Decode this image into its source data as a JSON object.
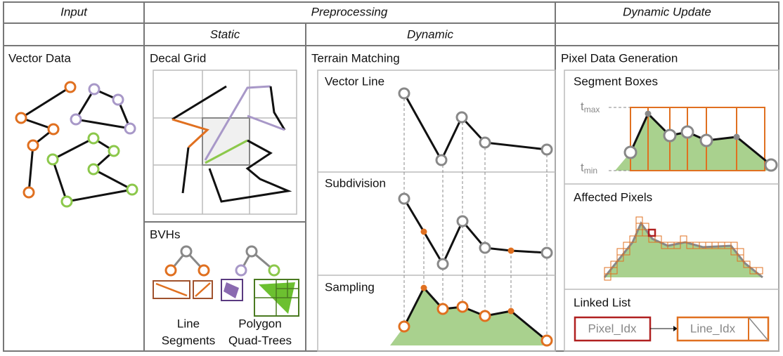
{
  "header": {
    "input": "Input",
    "preprocessing": "Preprocessing",
    "dynamic_update": "Dynamic Update"
  },
  "subheader": {
    "static": "Static",
    "dynamic": "Dynamic"
  },
  "input": {
    "title": "Vector Data"
  },
  "static": {
    "decal_grid": "Decal Grid",
    "bvhs": {
      "title": "BVHs",
      "line_label": [
        "Line",
        "Segments"
      ],
      "polygon_label": [
        "Polygon",
        "Quad-Trees"
      ]
    }
  },
  "dynamic": {
    "title": "Terrain Matching",
    "vector_line": "Vector Line",
    "subdivision": "Subdivision",
    "sampling": "Sampling"
  },
  "update": {
    "title": "Pixel Data Generation",
    "segment_boxes": {
      "title": "Segment Boxes",
      "tmax": {
        "base": "t",
        "sub": "max"
      },
      "tmin": {
        "base": "t",
        "sub": "min"
      }
    },
    "affected_pixels": "Affected Pixels",
    "linked_list": {
      "title": "Linked List",
      "pixel": "Pixel_Idx",
      "line": "Line_Idx"
    }
  }
}
